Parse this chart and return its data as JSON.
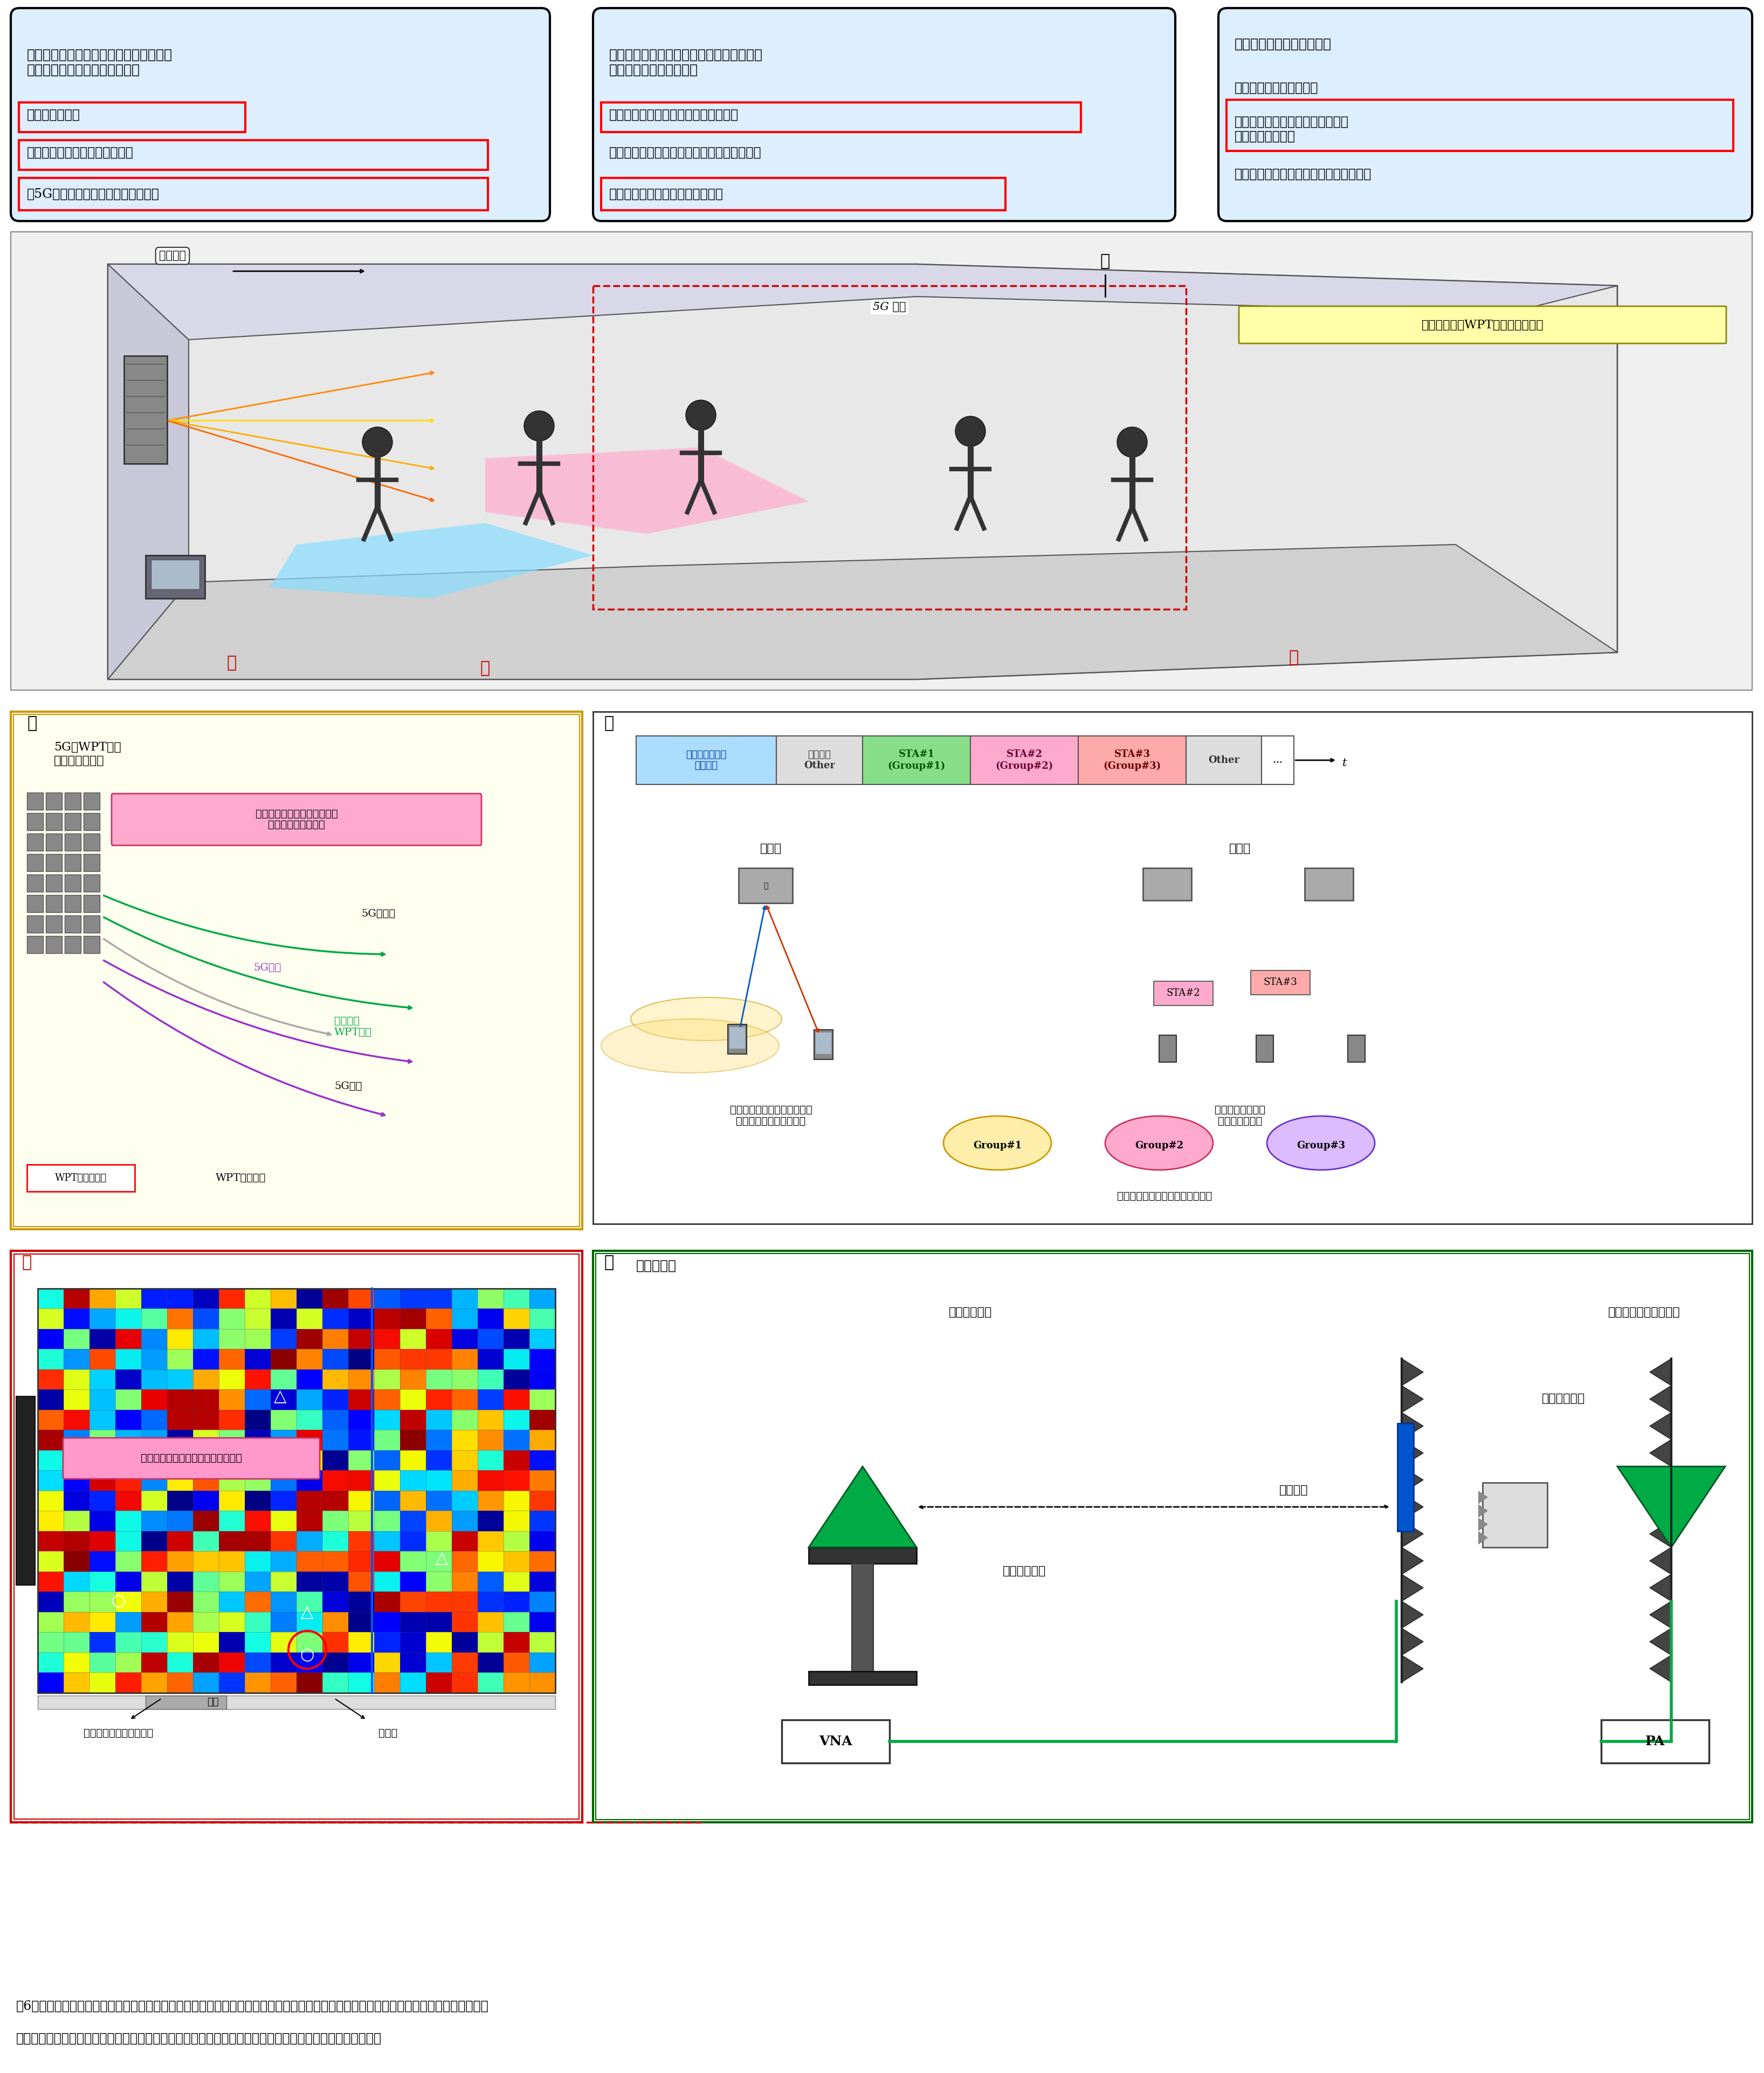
{
  "fig_width": 32.73,
  "fig_height": 38.45,
  "bg_color": "#ffffff",
  "panel_bg": "#ddeeff",
  "panel_border": "#000000",
  "red_box_color": "#cc0000",
  "caption": "図6　電波資源のための技術研究の概要　　研究テーマは大きく三つに分かれ，【課題ア】新たな高周波数帯を活用した電力伝送効率化技\n術【課題イ】空間環境に応じた多数デバイス給電制御技術【課題ウ】共存性評価技術の研究がされている．",
  "box_a": {
    "title": "【課題ア】新たな高周波数帯を活用した\n　　　　電力伝送効率化技術",
    "items": [
      {
        "text": "・全体構成設計",
        "red_box": true
      },
      {
        "text": "・高出力鋭角ビームの送信技術",
        "red_box": true
      },
      {
        "text": "・5G準ミリ波との共用化技術（①）",
        "red_box": true
      }
    ]
  },
  "box_i": {
    "title": "【課題イ】空間環境に応じた多数デバイス\n　　　　　給電制御技術",
    "items": [
      {
        "text": "・給電用メディアアクセス技術（②）",
        "red_box": true
      },
      {
        "text": "・通信給電混在型メディアアクセス制御技術",
        "red_box": false
      },
      {
        "text": "・漏えい電力量可視化技術（③）",
        "red_box": true
      }
    ]
  },
  "box_u": {
    "title": "【課題ウ】共存性評価技術",
    "items": [
      {
        "text": "・漏えい電力量計測技術",
        "red_box": false
      },
      {
        "text": "・共存性評価に係るデータベース\n　構築技術（④）",
        "red_box": true
      },
      {
        "text": "・干渉評価シミュレーション・システム",
        "red_box": false
      }
    ]
  },
  "sub1_title": "①",
  "sub1_subtitle": "5G／WPT共用\n基地局アンテナ",
  "sub1_pink_label": "自局内干渉として制御された\n干渉低減による共用",
  "sub2_title": "②",
  "sub3_title": "③",
  "sub4_title": "④",
  "sub4_subtitle": "【断面図】",
  "spatial_label": "空間伝送方式WPTのユースケース",
  "spatial_info": "空間情報",
  "label_5g": "5G 端末",
  "colors": {
    "panel_bg_light": "#ddeeff",
    "yellow_border": "#ddaa00",
    "red_border": "#cc0000",
    "green": "#00aa44",
    "orange": "#ff8800",
    "purple": "#9933cc",
    "cyan_area": "#aaeeff",
    "pink_area": "#ffaacc",
    "yellow_area": "#ffffaa",
    "heatmap_colors": [
      "#000080",
      "#0000ff",
      "#00ffff",
      "#00ff00",
      "#ffff00",
      "#ff8800",
      "#ff0000",
      "#880000"
    ]
  }
}
